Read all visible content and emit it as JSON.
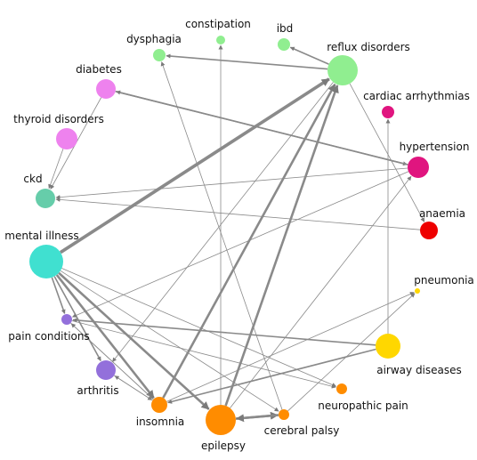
{
  "nodes": [
    {
      "id": "constipation",
      "label": "constipation",
      "color": "#90ee90"
    },
    {
      "id": "ibd",
      "label": "ibd",
      "color": "#90ee90"
    },
    {
      "id": "dysphagia",
      "label": "dysphagia",
      "color": "#90ee90"
    },
    {
      "id": "reflux",
      "label": "reflux disorders",
      "color": "#90ee90"
    },
    {
      "id": "diabetes",
      "label": "diabetes",
      "color": "#ee82ee"
    },
    {
      "id": "cardiac",
      "label": "cardiac arrhythmias",
      "color": "#e0157f"
    },
    {
      "id": "thyroid",
      "label": "thyroid disorders",
      "color": "#ee82ee"
    },
    {
      "id": "hypertension",
      "label": "hypertension",
      "color": "#e0157f"
    },
    {
      "id": "ckd",
      "label": "ckd",
      "color": "#66cdaa"
    },
    {
      "id": "anaemia",
      "label": "anaemia",
      "color": "#ee0000"
    },
    {
      "id": "mental",
      "label": "mental illness",
      "color": "#40e0d0"
    },
    {
      "id": "pneumonia",
      "label": "pneumonia",
      "color": "#ffd700"
    },
    {
      "id": "pain",
      "label": "pain conditions",
      "color": "#9370db"
    },
    {
      "id": "airway",
      "label": "airway diseases",
      "color": "#ffd700"
    },
    {
      "id": "arthritis",
      "label": "arthritis",
      "color": "#9370db"
    },
    {
      "id": "neuropathic",
      "label": "neuropathic pain",
      "color": "#ff8c00"
    },
    {
      "id": "insomnia",
      "label": "insomnia",
      "color": "#ff8c00"
    },
    {
      "id": "epilepsy",
      "label": "epilepsy",
      "color": "#ff8c00"
    },
    {
      "id": "cerebral",
      "label": "cerebral palsy",
      "color": "#ff8c00"
    }
  ],
  "edges": [
    {
      "from": "mental",
      "to": "reflux",
      "weight": 4
    },
    {
      "from": "mental",
      "to": "pain",
      "weight": 2
    },
    {
      "from": "mental",
      "to": "arthritis",
      "weight": 2
    },
    {
      "from": "mental",
      "to": "insomnia",
      "weight": 3
    },
    {
      "from": "mental",
      "to": "epilepsy",
      "weight": 3
    },
    {
      "from": "mental",
      "to": "neuropathic",
      "weight": 1
    },
    {
      "from": "mental",
      "to": "cerebral",
      "weight": 1
    },
    {
      "from": "reflux",
      "to": "dysphagia",
      "weight": 2
    },
    {
      "from": "reflux",
      "to": "ibd",
      "weight": 2
    },
    {
      "from": "reflux",
      "to": "anaemia",
      "weight": 1
    },
    {
      "from": "reflux",
      "to": "arthritis",
      "weight": 1
    },
    {
      "from": "epilepsy",
      "to": "reflux",
      "weight": 3
    },
    {
      "from": "epilepsy",
      "to": "constipation",
      "weight": 1
    },
    {
      "from": "epilepsy",
      "to": "cerebral",
      "weight": 3
    },
    {
      "from": "epilepsy",
      "to": "hypertension",
      "weight": 1
    },
    {
      "from": "cerebral",
      "to": "epilepsy",
      "weight": 3
    },
    {
      "from": "cerebral",
      "to": "dysphagia",
      "weight": 1
    },
    {
      "from": "cerebral",
      "to": "pneumonia",
      "weight": 1
    },
    {
      "from": "diabetes",
      "to": "hypertension",
      "weight": 2
    },
    {
      "from": "hypertension",
      "to": "diabetes",
      "weight": 2
    },
    {
      "from": "hypertension",
      "to": "ckd",
      "weight": 1
    },
    {
      "from": "hypertension",
      "to": "pain",
      "weight": 1
    },
    {
      "from": "diabetes",
      "to": "ckd",
      "weight": 1
    },
    {
      "from": "thyroid",
      "to": "ckd",
      "weight": 1
    },
    {
      "from": "anaemia",
      "to": "ckd",
      "weight": 1
    },
    {
      "from": "airway",
      "to": "cardiac",
      "weight": 1
    },
    {
      "from": "airway",
      "to": "pain",
      "weight": 2
    },
    {
      "from": "airway",
      "to": "insomnia",
      "weight": 2
    },
    {
      "from": "pain",
      "to": "insomnia",
      "weight": 1
    },
    {
      "from": "pain",
      "to": "neuropathic",
      "weight": 1
    },
    {
      "from": "arthritis",
      "to": "insomnia",
      "weight": 1
    },
    {
      "from": "insomnia",
      "to": "pain",
      "weight": 1
    },
    {
      "from": "insomnia",
      "to": "arthritis",
      "weight": 1
    },
    {
      "from": "insomnia",
      "to": "reflux",
      "weight": 3
    },
    {
      "from": "insomnia",
      "to": "pneumonia",
      "weight": 1
    }
  ]
}
